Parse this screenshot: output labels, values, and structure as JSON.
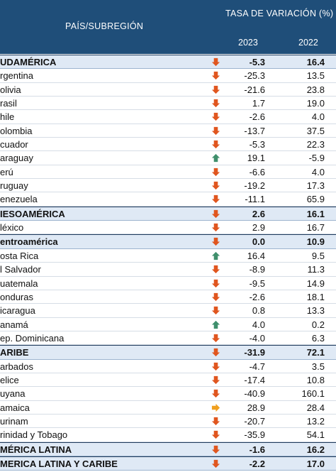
{
  "header": {
    "country_label": "PAÍS/SUBREGIÓN",
    "rate_label": "TASA DE VARIACIÓN (%)",
    "year_a": "2023",
    "year_b": "2022"
  },
  "colors": {
    "header_bg": "#1f4e79",
    "region_bg": "#dfe9f5",
    "trend_down": "#e0561f",
    "trend_up": "#3f8f6c",
    "trend_flat": "#f0a020"
  },
  "rows": [
    {
      "name": "UDAMÉRICA",
      "v2023": "-5.3",
      "v2022": "16.4",
      "trend": "down",
      "region": true
    },
    {
      "name": "rgentina",
      "v2023": "-25.3",
      "v2022": "13.5",
      "trend": "down"
    },
    {
      "name": "olivia",
      "v2023": "-21.6",
      "v2022": "23.8",
      "trend": "down"
    },
    {
      "name": "rasil",
      "v2023": "1.7",
      "v2022": "19.0",
      "trend": "down"
    },
    {
      "name": "hile",
      "v2023": "-2.6",
      "v2022": "4.0",
      "trend": "down"
    },
    {
      "name": "olombia",
      "v2023": "-13.7",
      "v2022": "37.5",
      "trend": "down"
    },
    {
      "name": "cuador",
      "v2023": "-5.3",
      "v2022": "22.3",
      "trend": "down"
    },
    {
      "name": "araguay",
      "v2023": "19.1",
      "v2022": "-5.9",
      "trend": "up"
    },
    {
      "name": "erú",
      "v2023": "-6.6",
      "v2022": "4.0",
      "trend": "down"
    },
    {
      "name": "ruguay",
      "v2023": "-19.2",
      "v2022": "17.3",
      "trend": "down"
    },
    {
      "name": "enezuela",
      "v2023": "-11.1",
      "v2022": "65.9",
      "trend": "down"
    },
    {
      "name": "IESOAMÉRICA",
      "v2023": "2.6",
      "v2022": "16.1",
      "trend": "down",
      "region": true
    },
    {
      "name": "léxico",
      "v2023": "2.9",
      "v2022": "16.7",
      "trend": "down"
    },
    {
      "name": "entroamérica",
      "v2023": "0.0",
      "v2022": "10.9",
      "trend": "down",
      "region": true
    },
    {
      "name": "osta Rica",
      "v2023": "16.4",
      "v2022": "9.5",
      "trend": "up"
    },
    {
      "name": "l Salvador",
      "v2023": "-8.9",
      "v2022": "11.3",
      "trend": "down"
    },
    {
      "name": "uatemala",
      "v2023": "-9.5",
      "v2022": "14.9",
      "trend": "down"
    },
    {
      "name": "onduras",
      "v2023": "-2.6",
      "v2022": "18.1",
      "trend": "down"
    },
    {
      "name": "icaragua",
      "v2023": "0.8",
      "v2022": "13.3",
      "trend": "down"
    },
    {
      "name": "anamá",
      "v2023": "4.0",
      "v2022": "0.2",
      "trend": "up"
    },
    {
      "name": "ep. Dominicana",
      "v2023": "-4.0",
      "v2022": "6.3",
      "trend": "down"
    },
    {
      "name": "ARIBE",
      "v2023": "-31.9",
      "v2022": "72.1",
      "trend": "down",
      "region": true
    },
    {
      "name": "arbados",
      "v2023": "-4.7",
      "v2022": "3.5",
      "trend": "down"
    },
    {
      "name": "elice",
      "v2023": "-17.4",
      "v2022": "10.8",
      "trend": "down"
    },
    {
      "name": "uyana",
      "v2023": "-40.9",
      "v2022": "160.1",
      "trend": "down"
    },
    {
      "name": "amaica",
      "v2023": "28.9",
      "v2022": "28.4",
      "trend": "flat"
    },
    {
      "name": "urinam",
      "v2023": "-20.7",
      "v2022": "13.2",
      "trend": "down"
    },
    {
      "name": "rinidad y Tobago",
      "v2023": "-35.9",
      "v2022": "54.1",
      "trend": "down"
    },
    {
      "name": "MÉRICA LATINA",
      "v2023": "-1.6",
      "v2022": "16.2",
      "trend": "down",
      "region": true
    },
    {
      "name": "MERICA LATINA Y CARIBE",
      "v2023": "-2.2",
      "v2022": "17.0",
      "trend": "down",
      "region": true
    }
  ]
}
